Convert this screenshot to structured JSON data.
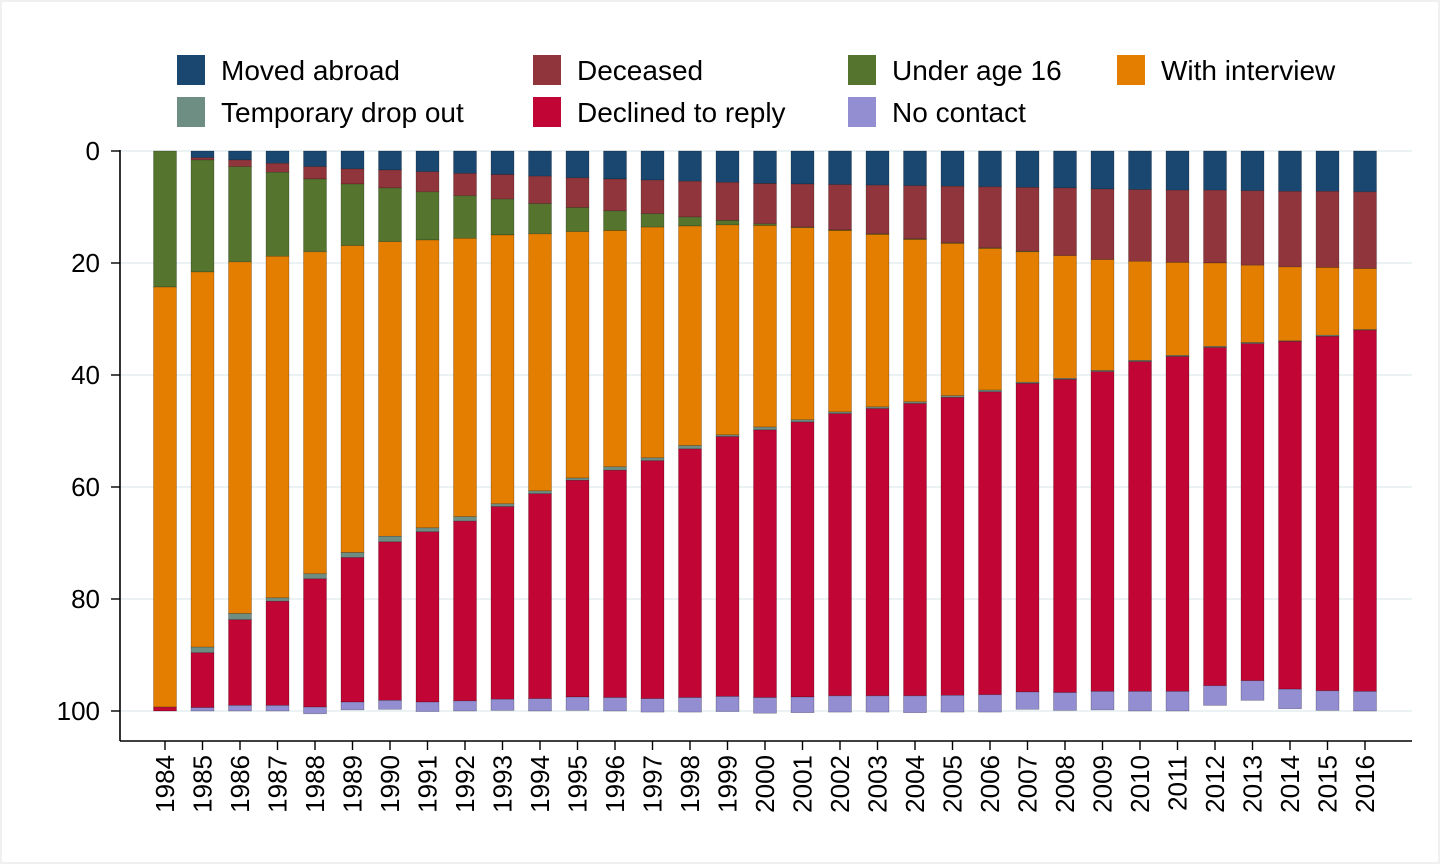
{
  "chart_data": {
    "type": "bar",
    "stacked": true,
    "orientation": "vertical",
    "y_axis_reversed": true,
    "title": "",
    "xlabel": "",
    "ylabel": "",
    "ylim": [
      0,
      100
    ],
    "yticks": [
      "0",
      "20",
      "40",
      "60",
      "80",
      "100"
    ],
    "grid": true,
    "legend_position": "top",
    "categories": [
      "1984",
      "1985",
      "1986",
      "1987",
      "1988",
      "1989",
      "1990",
      "1991",
      "1992",
      "1993",
      "1994",
      "1995",
      "1996",
      "1997",
      "1998",
      "1999",
      "2000",
      "2001",
      "2002",
      "2003",
      "2004",
      "2005",
      "2006",
      "2007",
      "2008",
      "2009",
      "2010",
      "2011",
      "2012",
      "2013",
      "2014",
      "2015",
      "2016"
    ],
    "legend_order": [
      "Moved abroad",
      "Deceased",
      "Under age 16",
      "With interview",
      "Temporary drop out",
      "Declined to reply",
      "No contact"
    ],
    "series": [
      {
        "name": "Moved abroad",
        "color": "#1a476f",
        "values": [
          0,
          1.2,
          1.6,
          2.2,
          2.8,
          3.2,
          3.4,
          3.7,
          4,
          4.2,
          4.5,
          4.8,
          5,
          5.2,
          5.4,
          5.6,
          5.8,
          5.9,
          6,
          6.1,
          6.2,
          6.3,
          6.4,
          6.5,
          6.6,
          6.8,
          6.9,
          7,
          7,
          7.1,
          7.2,
          7.2,
          7.3
        ]
      },
      {
        "name": "Deceased",
        "color": "#90353b",
        "values": [
          0,
          0.4,
          1.2,
          1.6,
          2.2,
          2.7,
          3.2,
          3.6,
          4,
          4.4,
          4.9,
          5.3,
          5.7,
          6,
          6.4,
          6.8,
          7.2,
          7.7,
          8.1,
          8.7,
          9.5,
          10.1,
          10.9,
          11.4,
          12.1,
          12.6,
          12.8,
          12.9,
          13,
          13.3,
          13.5,
          13.6,
          13.7
        ]
      },
      {
        "name": "Under age 16",
        "color": "#55752f",
        "values": [
          24.3,
          20,
          17,
          15,
          13,
          11,
          9.6,
          8.6,
          7.6,
          6.4,
          5.4,
          4.3,
          3.5,
          2.4,
          1.6,
          0.8,
          0.3,
          0.1,
          0.1,
          0.1,
          0.1,
          0.1,
          0.1,
          0.1,
          0,
          0,
          0,
          0,
          0,
          0,
          0,
          0,
          0
        ]
      },
      {
        "name": "With interview",
        "color": "#e37e00",
        "values": [
          75,
          67,
          62.8,
          61,
          57.5,
          54.8,
          52.6,
          51.4,
          49.7,
          48,
          45.9,
          44,
          42.2,
          41.2,
          39.2,
          37.5,
          36,
          34.3,
          32.4,
          30.8,
          29,
          27.2,
          25.3,
          23.3,
          21.9,
          19.8,
          17.7,
          16.6,
          14.9,
          13.8,
          13.2,
          12.1,
          10.9
        ]
      },
      {
        "name": "Temporary drop out",
        "color": "#6e8e84",
        "values": [
          0,
          1,
          1.1,
          0.6,
          0.9,
          0.9,
          1,
          0.7,
          0.8,
          0.5,
          0.5,
          0.4,
          0.6,
          0.5,
          0.6,
          0.3,
          0.5,
          0.4,
          0.3,
          0.3,
          0.3,
          0.3,
          0.3,
          0.2,
          0.2,
          0.2,
          0.2,
          0.2,
          0.2,
          0.2,
          0.1,
          0.2,
          0.1
        ]
      },
      {
        "name": "Declined to reply",
        "color": "#c10534",
        "values": [
          0.7,
          9.8,
          15.3,
          18.6,
          22.9,
          25.8,
          28.3,
          30.4,
          32.1,
          34.4,
          36.6,
          38.7,
          40.6,
          42.5,
          44.4,
          46.4,
          47.8,
          49.1,
          50.4,
          51.3,
          52.2,
          53.2,
          54.1,
          55.1,
          55.9,
          57.1,
          58.9,
          59.8,
          60.4,
          60.2,
          62.1,
          63.3,
          64.5
        ]
      },
      {
        "name": "No contact",
        "color": "#938dd2",
        "values": [
          0,
          0.6,
          1,
          1,
          1.2,
          1.4,
          1.6,
          1.7,
          1.8,
          2,
          2.2,
          2.4,
          2.4,
          2.4,
          2.6,
          2.7,
          2.8,
          2.8,
          2.9,
          2.9,
          3,
          3,
          3.1,
          3.1,
          3.2,
          3.3,
          3.5,
          3.5,
          3.5,
          3.5,
          3.5,
          3.5,
          3.5
        ]
      }
    ]
  }
}
